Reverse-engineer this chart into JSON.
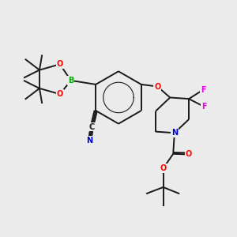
{
  "bg_color": "#ebebeb",
  "bond_color": "#1a1a1a",
  "bond_lw": 1.4,
  "atom_colors": {
    "O": "#ff0000",
    "N": "#0000cc",
    "B": "#00aa00",
    "F": "#ee00ee",
    "C": "#1a1a1a"
  },
  "figsize": [
    3.0,
    3.0
  ],
  "dpi": 100
}
